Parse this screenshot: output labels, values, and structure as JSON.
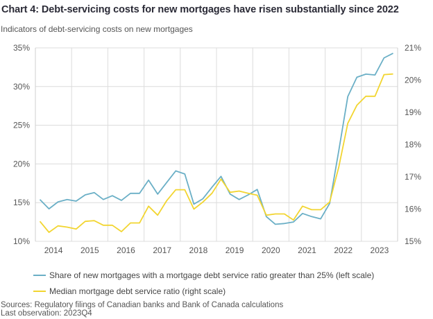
{
  "header": {
    "title": "Chart 4: Debt-servicing costs for new mortgages have risen substantially since 2022",
    "subtitle": "Indicators of debt-servicing costs on new mortgages"
  },
  "footer": {
    "sources": "Sources: Regulatory filings of Canadian banks and Bank of Canada calculations",
    "last_observation": "Last observation: 2023Q4"
  },
  "chart_data": {
    "type": "line",
    "title": "Chart 4: Debt-servicing costs for new mortgages have risen substantially since 2022",
    "subtitle": "Indicators of debt-servicing costs on new mortgages",
    "xlabel": "",
    "ylabel_left": "",
    "ylabel_right": "",
    "frequency": "quarterly",
    "x": [
      "2014Q1",
      "2014Q2",
      "2014Q3",
      "2014Q4",
      "2015Q1",
      "2015Q2",
      "2015Q3",
      "2015Q4",
      "2016Q1",
      "2016Q2",
      "2016Q3",
      "2016Q4",
      "2017Q1",
      "2017Q2",
      "2017Q3",
      "2017Q4",
      "2018Q1",
      "2018Q2",
      "2018Q3",
      "2018Q4",
      "2019Q1",
      "2019Q2",
      "2019Q3",
      "2019Q4",
      "2020Q1",
      "2020Q2",
      "2020Q3",
      "2020Q4",
      "2021Q1",
      "2021Q2",
      "2021Q3",
      "2021Q4",
      "2022Q1",
      "2022Q2",
      "2022Q3",
      "2022Q4",
      "2023Q1",
      "2023Q2",
      "2023Q3",
      "2023Q4"
    ],
    "x_tick_labels": [
      "2014",
      "2015",
      "2016",
      "2017",
      "2018",
      "2019",
      "2020",
      "2021",
      "2022",
      "2023"
    ],
    "y_left": {
      "min": 10,
      "max": 35,
      "ticks": [
        10,
        15,
        20,
        25,
        30,
        35
      ],
      "tick_labels": [
        "10%",
        "15%",
        "20%",
        "25%",
        "30%",
        "35%"
      ]
    },
    "y_right": {
      "min": 15,
      "max": 21,
      "ticks": [
        15,
        16,
        17,
        18,
        19,
        20,
        21
      ],
      "tick_labels": [
        "15%",
        "16%",
        "17%",
        "18%",
        "19%",
        "20%",
        "21%"
      ]
    },
    "grid": true,
    "legend_position": "bottom",
    "series": [
      {
        "name": "Share of new mortgages with a mortgage debt service ratio greater than 25% (left scale)",
        "axis": "left",
        "color": "#6aafc6",
        "values": [
          15.4,
          14.2,
          15.1,
          15.4,
          15.2,
          16.0,
          16.3,
          15.4,
          15.9,
          15.3,
          16.2,
          16.2,
          17.9,
          16.1,
          17.6,
          19.1,
          18.7,
          14.8,
          15.5,
          17.0,
          18.4,
          16.1,
          15.4,
          16.0,
          16.7,
          13.2,
          12.2,
          12.3,
          12.5,
          13.6,
          13.2,
          12.9,
          14.9,
          21.7,
          28.7,
          31.2,
          31.6,
          31.5,
          33.7,
          34.3
        ]
      },
      {
        "name": "Median mortgage debt service ratio (right scale)",
        "axis": "right",
        "color": "#f2d530",
        "values": [
          15.62,
          15.28,
          15.48,
          15.44,
          15.38,
          15.62,
          15.64,
          15.5,
          15.5,
          15.3,
          15.57,
          15.57,
          16.09,
          15.81,
          16.26,
          16.6,
          16.6,
          16.0,
          16.22,
          16.49,
          16.93,
          16.52,
          16.56,
          16.49,
          16.43,
          15.81,
          15.85,
          15.85,
          15.66,
          16.09,
          15.98,
          15.98,
          16.22,
          17.3,
          18.66,
          19.22,
          19.5,
          19.5,
          20.17,
          20.19
        ]
      }
    ]
  }
}
